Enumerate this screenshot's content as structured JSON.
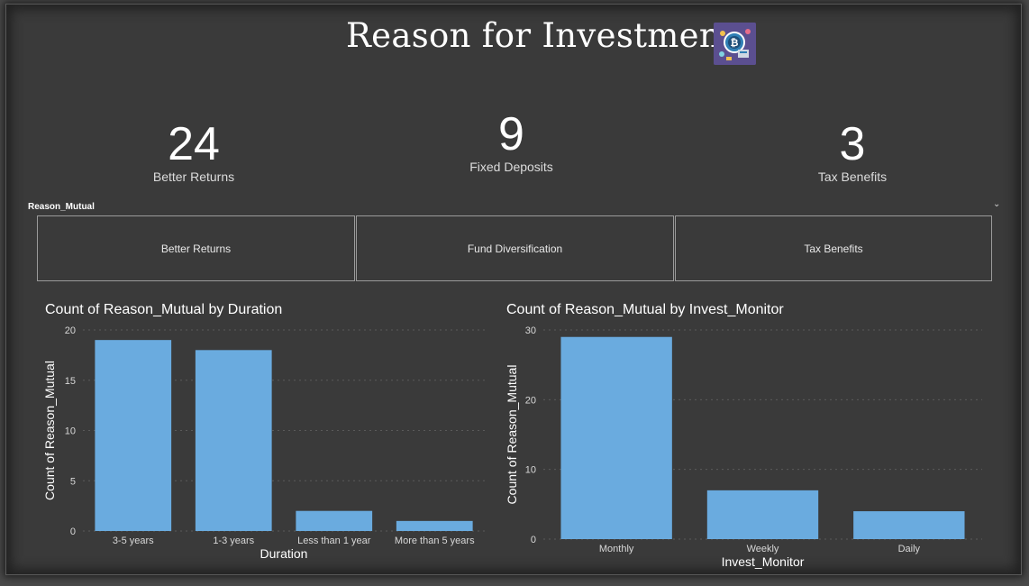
{
  "header": {
    "title": "Reason for Investment"
  },
  "kpis": [
    {
      "value": "24",
      "label": "Better Returns"
    },
    {
      "value": "9",
      "label": "Fixed Deposits"
    },
    {
      "value": "3",
      "label": "Tax Benefits"
    }
  ],
  "slicer": {
    "title": "Reason_Mutual",
    "options": [
      "Better Returns",
      "Fund Diversification",
      "Tax Benefits"
    ]
  },
  "colors": {
    "bar": "#6aabdf",
    "background": "#3a3a3a",
    "grid": "#5a5a5a"
  },
  "chart_data": [
    {
      "type": "bar",
      "title": "Count of Reason_Mutual by Duration",
      "xlabel": "Duration",
      "ylabel": "Count of Reason_Mutual",
      "categories": [
        "3-5 years",
        "1-3 years",
        "Less than 1 year",
        "More than 5 years"
      ],
      "values": [
        19,
        18,
        2,
        1
      ],
      "ylim": [
        0,
        20
      ],
      "yticks": [
        0,
        5,
        10,
        15,
        20
      ],
      "grid": true
    },
    {
      "type": "bar",
      "title": "Count of Reason_Mutual by Invest_Monitor",
      "xlabel": "Invest_Monitor",
      "ylabel": "Count of Reason_Mutual",
      "categories": [
        "Monthly",
        "Weekly",
        "Daily"
      ],
      "values": [
        29,
        7,
        4
      ],
      "ylim": [
        0,
        30
      ],
      "yticks": [
        0,
        10,
        20,
        30
      ],
      "grid": true
    }
  ]
}
